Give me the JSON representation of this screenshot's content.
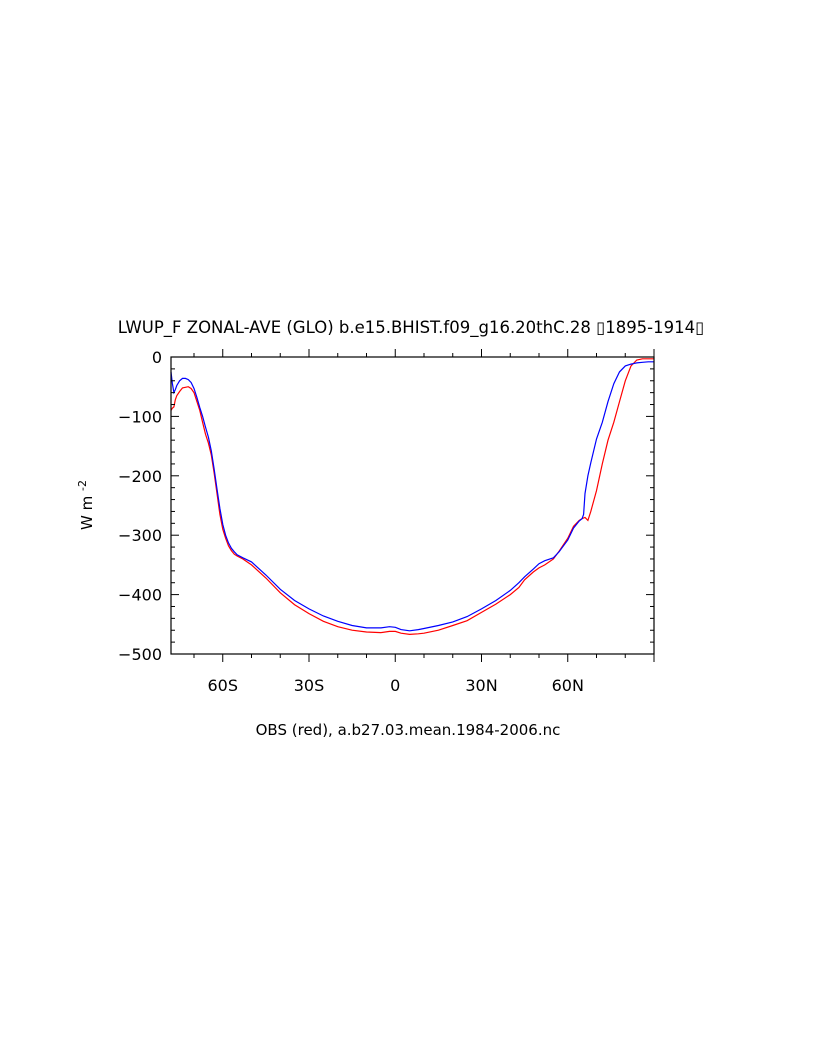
{
  "chart_data": {
    "type": "line",
    "title": "LWUP_F ZONAL-AVE (GLO) b.e15.BHIST.f09_g16.20thC.28 ▯1895-1914▯",
    "xlabel": "OBS (red), a.b27.03.mean.1984-2006.nc",
    "ylabel": "W m",
    "ylabel_superscript": "-2",
    "xlim": [
      -78,
      90
    ],
    "ylim": [
      -500,
      0
    ],
    "grid": false,
    "x_ticks": [
      {
        "value": -60,
        "label": "60S"
      },
      {
        "value": -30,
        "label": "30S"
      },
      {
        "value": 0,
        "label": "0"
      },
      {
        "value": 30,
        "label": "30N"
      },
      {
        "value": 60,
        "label": "60N"
      }
    ],
    "y_ticks": [
      {
        "value": 0,
        "label": "0"
      },
      {
        "value": -100,
        "label": "−100"
      },
      {
        "value": -200,
        "label": "−200"
      },
      {
        "value": -300,
        "label": "−300"
      },
      {
        "value": -400,
        "label": "−400"
      },
      {
        "value": -500,
        "label": "−500"
      }
    ],
    "series": [
      {
        "color": "#ff0000",
        "x": [
          -78,
          -77.5,
          -77,
          -76.5,
          -76,
          -75,
          -74,
          -73,
          -72,
          -71,
          -70,
          -69,
          -68,
          -67,
          -66,
          -65,
          -64,
          -63,
          -62,
          -61,
          -60,
          -59,
          -58,
          -57,
          -56,
          -55,
          -53,
          -50,
          -45,
          -40,
          -35,
          -30,
          -25,
          -20,
          -15,
          -10,
          -5,
          -2,
          0,
          2,
          5,
          8,
          10,
          15,
          20,
          25,
          30,
          35,
          40,
          43,
          45,
          48,
          50,
          52,
          55,
          57,
          60,
          62,
          64,
          65,
          66,
          67,
          68,
          70,
          72,
          74,
          76,
          78,
          80,
          82,
          84,
          86,
          88,
          90
        ],
        "y": [
          -90,
          -86,
          -84,
          -72,
          -65,
          -58,
          -52,
          -51,
          -50,
          -53,
          -60,
          -75,
          -90,
          -110,
          -130,
          -145,
          -165,
          -195,
          -230,
          -265,
          -290,
          -305,
          -318,
          -326,
          -332,
          -335,
          -340,
          -350,
          -372,
          -397,
          -417,
          -432,
          -445,
          -454,
          -460,
          -463,
          -464,
          -462,
          -462,
          -465,
          -467,
          -466,
          -465,
          -460,
          -452,
          -444,
          -430,
          -416,
          -400,
          -388,
          -375,
          -362,
          -355,
          -350,
          -340,
          -327,
          -305,
          -285,
          -275,
          -272,
          -270,
          -275,
          -260,
          -225,
          -180,
          -140,
          -110,
          -75,
          -40,
          -15,
          -5,
          -3,
          -3,
          -3
        ]
      },
      {
        "color": "#0000ff",
        "x": [
          -78,
          -77.5,
          -77,
          -76.5,
          -76,
          -75,
          -74,
          -73,
          -72,
          -71,
          -70,
          -69,
          -68,
          -67,
          -66,
          -65,
          -64,
          -63,
          -62,
          -61,
          -60,
          -59,
          -58,
          -57,
          -56,
          -55,
          -53,
          -50,
          -45,
          -40,
          -35,
          -30,
          -25,
          -20,
          -15,
          -10,
          -5,
          -2,
          0,
          2,
          5,
          8,
          10,
          15,
          20,
          25,
          30,
          35,
          40,
          43,
          45,
          48,
          50,
          52,
          55,
          57,
          60,
          62,
          64,
          65,
          65.5,
          66,
          67,
          68,
          70,
          72,
          74,
          76,
          78,
          80,
          82,
          84,
          86,
          88,
          90
        ],
        "y": [
          -25,
          -45,
          -60,
          -55,
          -48,
          -40,
          -36,
          -36,
          -38,
          -43,
          -53,
          -68,
          -85,
          -100,
          -118,
          -135,
          -158,
          -188,
          -222,
          -255,
          -282,
          -300,
          -313,
          -322,
          -328,
          -333,
          -338,
          -345,
          -367,
          -391,
          -410,
          -424,
          -436,
          -445,
          -452,
          -456,
          -456,
          -454,
          -455,
          -459,
          -461,
          -459,
          -457,
          -452,
          -446,
          -437,
          -424,
          -410,
          -393,
          -380,
          -370,
          -357,
          -348,
          -343,
          -338,
          -328,
          -308,
          -288,
          -276,
          -272,
          -265,
          -230,
          -200,
          -178,
          -138,
          -110,
          -75,
          -45,
          -25,
          -15,
          -12,
          -10,
          -9,
          -8,
          -8
        ]
      }
    ]
  }
}
